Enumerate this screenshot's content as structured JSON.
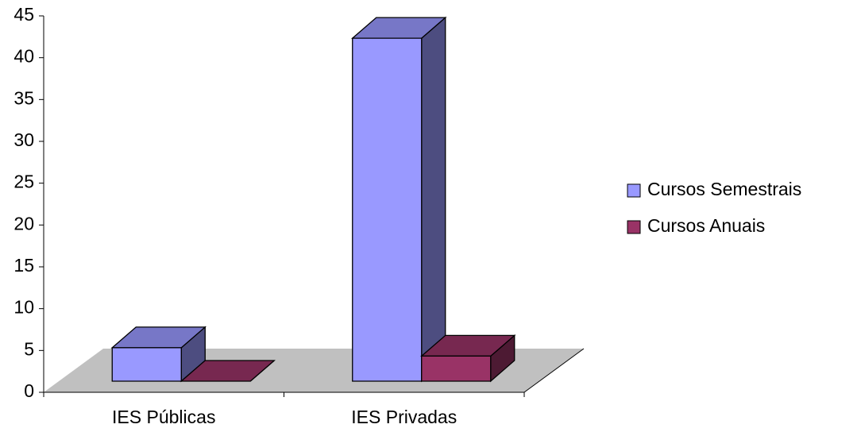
{
  "chart_data": {
    "type": "bar3d",
    "categories": [
      "IES Públicas",
      "IES Privadas"
    ],
    "series": [
      {
        "name": "Cursos Semestrais",
        "color": "#9999ff",
        "values": [
          4,
          41
        ]
      },
      {
        "name": "Cursos Anuais",
        "color": "#993366",
        "values": [
          0,
          3
        ]
      }
    ],
    "ylim": [
      0,
      45
    ],
    "yticks": [
      0,
      5,
      10,
      15,
      20,
      25,
      30,
      35,
      40,
      45
    ],
    "legend": "right"
  }
}
